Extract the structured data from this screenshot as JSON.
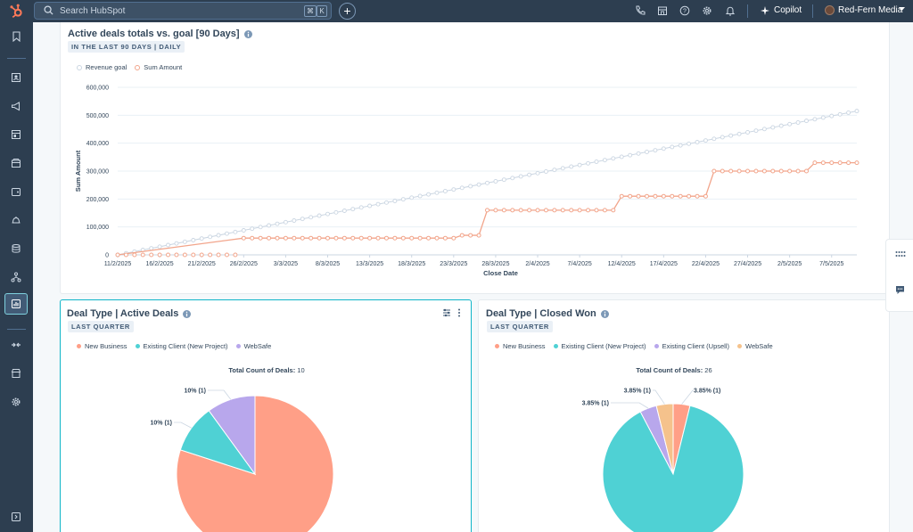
{
  "topbar": {
    "search_placeholder": "Search HubSpot",
    "kbd": [
      "⌘",
      "K"
    ],
    "copilot_label": "Copilot",
    "account_name": "Red-Fern Media"
  },
  "line_card": {
    "title": "Active deals totals vs. goal [90 Days]",
    "tag": "IN THE LAST 90 DAYS | DAILY",
    "legend": [
      "Revenue goal",
      "Sum Amount"
    ],
    "chart_data": {
      "type": "line",
      "xlabel": "Close Date",
      "ylabel": "Sum Amount",
      "ylim": [
        0,
        600000
      ],
      "y_ticks": [
        "600,000",
        "500,000",
        "400,000",
        "300,000",
        "200,000",
        "100,000",
        "0"
      ],
      "x_ticks": [
        "11/2/2025",
        "16/2/2025",
        "21/2/2025",
        "26/2/2025",
        "3/3/2025",
        "8/3/2025",
        "13/3/2025",
        "18/3/2025",
        "23/3/2025",
        "28/3/2025",
        "2/4/2025",
        "7/4/2025",
        "12/4/2025",
        "17/4/2025",
        "22/4/2025",
        "27/4/2025",
        "2/5/2025",
        "7/5/2025"
      ],
      "series": [
        {
          "name": "Revenue goal",
          "color": "#cbd6e2",
          "points": [
            [
              0,
              0
            ],
            [
              88,
              515000
            ]
          ]
        },
        {
          "name": "Sum Amount",
          "color": "#f2a58b",
          "steps": [
            [
              0,
              0
            ],
            [
              15,
              60000
            ],
            [
              40,
              60000
            ],
            [
              41,
              70000
            ],
            [
              43,
              70000
            ],
            [
              44,
              160000
            ],
            [
              59,
              160000
            ],
            [
              60,
              210000
            ],
            [
              70,
              210000
            ],
            [
              71,
              300000
            ],
            [
              82,
              300000
            ],
            [
              83,
              330000
            ],
            [
              88,
              330000
            ]
          ]
        }
      ]
    }
  },
  "pie_left": {
    "title": "Deal Type | Active Deals",
    "tag": "LAST QUARTER",
    "legend": [
      {
        "label": "New Business",
        "color": "#ff9f87"
      },
      {
        "label": "Existing Client (New Project)",
        "color": "#4fd1d4"
      },
      {
        "label": "WebSafe",
        "color": "#b8a7ec"
      }
    ],
    "total_label": "Total Count of Deals:",
    "total_value": "10",
    "chart_data": {
      "type": "pie",
      "slices": [
        {
          "label": "New Business",
          "value": 80,
          "color": "#ff9f87",
          "data_label": ""
        },
        {
          "label": "Existing Client (New Project)",
          "value": 10,
          "color": "#4fd1d4",
          "data_label": "10% (1)"
        },
        {
          "label": "WebSafe",
          "value": 10,
          "color": "#b8a7ec",
          "data_label": "10% (1)"
        }
      ]
    }
  },
  "pie_right": {
    "title": "Deal Type | Closed Won",
    "tag": "LAST QUARTER",
    "legend": [
      {
        "label": "New Business",
        "color": "#ff9f87"
      },
      {
        "label": "Existing Client (New Project)",
        "color": "#4fd1d4"
      },
      {
        "label": "Existing Client (Upsell)",
        "color": "#b8a7ec"
      },
      {
        "label": "WebSafe",
        "color": "#f5c28c"
      }
    ],
    "total_label": "Total Count of Deals:",
    "total_value": "26",
    "chart_data": {
      "type": "pie",
      "slices": [
        {
          "label": "New Business",
          "value": 3.85,
          "color": "#ff9f87",
          "data_label": "3.85% (1)"
        },
        {
          "label": "Existing Client (New Project)",
          "value": 88.45,
          "color": "#4fd1d4",
          "data_label": ""
        },
        {
          "label": "Existing Client (Upsell)",
          "value": 3.85,
          "color": "#b8a7ec",
          "data_label": "3.85% (1)"
        },
        {
          "label": "WebSafe",
          "value": 3.85,
          "color": "#f5c28c",
          "data_label": "3.85% (1)"
        }
      ]
    }
  }
}
